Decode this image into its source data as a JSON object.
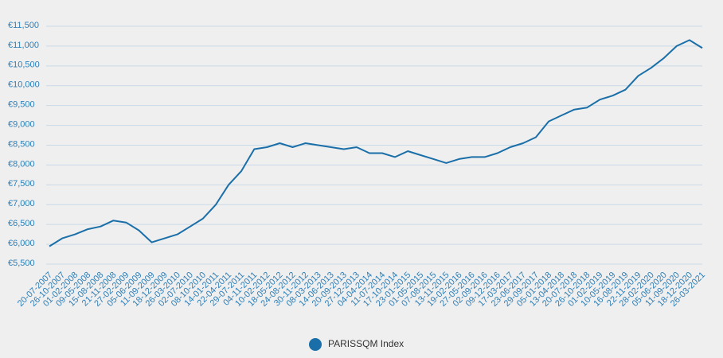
{
  "chart_data": {
    "type": "line",
    "categories": [
      "20-07-2007",
      "26-10-2007",
      "01-02-2008",
      "09-05-2008",
      "15-08-2008",
      "21-11-2008",
      "27-02-2009",
      "05-06-2009",
      "11-09-2009",
      "18-12-2009",
      "26-03-2010",
      "02-07-2010",
      "08-10-2010",
      "14-01-2011",
      "22-04-2011",
      "29-07-2011",
      "04-11-2011",
      "10-02-2012",
      "18-05-2012",
      "24-08-2012",
      "30-11-2012",
      "08-03-2013",
      "14-06-2013",
      "20-09-2013",
      "27-12-2013",
      "04-04-2014",
      "11-07-2014",
      "17-10-2014",
      "23-01-2015",
      "01-05-2015",
      "07-08-2015",
      "13-11-2015",
      "19-02-2016",
      "27-05-2016",
      "02-09-2016",
      "09-12-2016",
      "17-03-2017",
      "23-06-2017",
      "29-09-2017",
      "05-01-2018",
      "13-04-2018",
      "20-07-2018",
      "26-10-2018",
      "01-02-2019",
      "10-05-2019",
      "16-08-2019",
      "22-11-2019",
      "28-02-2020",
      "05-06-2020",
      "11-09-2020",
      "18-12-2020",
      "26-03-2021"
    ],
    "series": [
      {
        "name": "PARISSQM Index",
        "color": "#1a6fa8",
        "values": [
          5950,
          6150,
          6250,
          6380,
          6450,
          6600,
          6550,
          6350,
          6050,
          6150,
          6250,
          6450,
          6650,
          7000,
          7500,
          7850,
          8400,
          8450,
          8550,
          8450,
          8550,
          8500,
          8450,
          8400,
          8450,
          8300,
          8300,
          8200,
          8350,
          8250,
          8150,
          8050,
          8150,
          8200,
          8200,
          8300,
          8450,
          8550,
          8700,
          9100,
          9250,
          9400,
          9450,
          9650,
          9750,
          9900,
          10250,
          10450,
          10700,
          11000,
          11150,
          10950
        ]
      }
    ],
    "ylim": [
      5500,
      11500
    ],
    "yticks": [
      {
        "value": 5500,
        "label": "€5,500"
      },
      {
        "value": 6000,
        "label": "€6,000"
      },
      {
        "value": 6500,
        "label": "€6,500"
      },
      {
        "value": 7000,
        "label": "€7,000"
      },
      {
        "value": 7500,
        "label": "€7,500"
      },
      {
        "value": 8000,
        "label": "€8,000"
      },
      {
        "value": 8500,
        "label": "€8,500"
      },
      {
        "value": 9000,
        "label": "€9,000"
      },
      {
        "value": 9500,
        "label": "€9,500"
      },
      {
        "value": 10000,
        "label": "€10,000"
      },
      {
        "value": 10500,
        "label": "€10,500"
      },
      {
        "value": 11000,
        "label": "€11,000"
      },
      {
        "value": 11500,
        "label": "€11,500"
      }
    ],
    "grid": true,
    "legend": "bottom"
  }
}
